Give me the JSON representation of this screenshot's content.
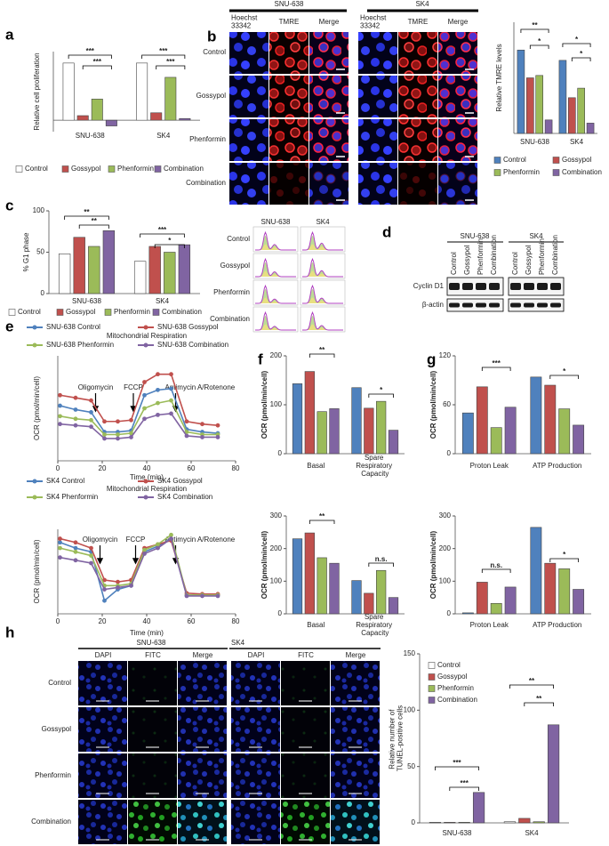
{
  "panel_labels": [
    "a",
    "b",
    "c",
    "d",
    "e",
    "f",
    "g",
    "h"
  ],
  "chart_data": [
    {
      "type": "bar",
      "y_label": "Relative cell proliferation",
      "categories": [
        "SNU-638",
        "SK4"
      ],
      "series": [
        {
          "name": "Control",
          "color": "#ffffff",
          "values": [
            1.0,
            1.0
          ]
        },
        {
          "name": "Gossypol",
          "color": "#c0504d",
          "values": [
            0.08,
            0.13
          ]
        },
        {
          "name": "Phenformin",
          "color": "#9bbb59",
          "values": [
            0.37,
            0.75
          ]
        },
        {
          "name": "Combination",
          "color": "#8064a2",
          "values": [
            -0.1,
            0.03
          ]
        }
      ],
      "ylim": [
        -0.2,
        1.2
      ],
      "annotations": [
        "***",
        "***",
        "***",
        "***"
      ]
    },
    {
      "type": "bar",
      "y_label": "Relative TMRE levels",
      "categories": [
        "SNU-638",
        "SK4"
      ],
      "series": [
        {
          "name": "Control",
          "color": "#4f81bd",
          "values": [
            1.05,
            0.92
          ]
        },
        {
          "name": "Gossypol",
          "color": "#c0504d",
          "values": [
            0.7,
            0.45
          ]
        },
        {
          "name": "Phenformin",
          "color": "#9bbb59",
          "values": [
            0.73,
            0.57
          ]
        },
        {
          "name": "Combination",
          "color": "#8064a2",
          "values": [
            0.17,
            0.13
          ]
        }
      ],
      "ylim": [
        0,
        1.4
      ],
      "annotations": [
        "**",
        "*",
        "*",
        "*"
      ]
    },
    {
      "type": "bar",
      "y_label": "% G1 phase",
      "categories": [
        "SNU-638",
        "SK4"
      ],
      "series": [
        {
          "name": "Control",
          "color": "#ffffff",
          "values": [
            48,
            39
          ]
        },
        {
          "name": "Gossypol",
          "color": "#c0504d",
          "values": [
            68,
            57
          ]
        },
        {
          "name": "Phenformin",
          "color": "#9bbb59",
          "values": [
            57,
            50
          ]
        },
        {
          "name": "Combination",
          "color": "#8064a2",
          "values": [
            76,
            59
          ]
        }
      ],
      "ylim": [
        0,
        100
      ],
      "yticks": [
        0,
        50,
        100
      ],
      "annotations": [
        "**",
        "**",
        "***",
        "*"
      ]
    },
    {
      "type": "line",
      "title": "Mitochondrial Respiration",
      "x_label": "Time (min)",
      "y_label": "OCR (pmol/min/cell)",
      "x": [
        1,
        8,
        15,
        21,
        27,
        33,
        39,
        45,
        51,
        58,
        65,
        72
      ],
      "xlim": [
        0,
        80
      ],
      "xticks": [
        0,
        20,
        40,
        60,
        80
      ],
      "ylim": [
        0,
        400
      ],
      "series": [
        {
          "name": "SNU-638 Control",
          "color": "#4f81bd",
          "values": [
            210,
            195,
            185,
            110,
            110,
            115,
            250,
            270,
            275,
            120,
            110,
            105
          ]
        },
        {
          "name": "SNU-638 Gossypol",
          "color": "#c0504d",
          "values": [
            250,
            240,
            230,
            150,
            150,
            155,
            300,
            330,
            330,
            150,
            140,
            135
          ]
        },
        {
          "name": "SNU-638 Phenformin",
          "color": "#9bbb59",
          "values": [
            170,
            160,
            155,
            100,
            100,
            105,
            200,
            220,
            230,
            110,
            100,
            100
          ]
        },
        {
          "name": "SNU-638 Combination",
          "color": "#8064a2",
          "values": [
            140,
            135,
            130,
            85,
            85,
            90,
            160,
            175,
            180,
            95,
            90,
            90
          ]
        }
      ],
      "annotations": [
        "Oligomycin",
        "FCCP",
        "Antimycin A/Rotenone"
      ]
    },
    {
      "type": "line",
      "title": "Mitochondrial Respiration",
      "x_label": "Time (min)",
      "y_label": "OCR (pmol/min/cell)",
      "x": [
        1,
        8,
        15,
        21,
        27,
        33,
        39,
        45,
        51,
        58,
        65,
        72
      ],
      "xlim": [
        0,
        80
      ],
      "xticks": [
        0,
        20,
        40,
        60,
        80
      ],
      "ylim": [
        0,
        450
      ],
      "series": [
        {
          "name": "SK4 Control",
          "color": "#4f81bd",
          "values": [
            380,
            350,
            330,
            70,
            130,
            150,
            330,
            360,
            400,
            100,
            100,
            100
          ]
        },
        {
          "name": "SK4 Gossypol",
          "color": "#c0504d",
          "values": [
            400,
            380,
            350,
            180,
            170,
            180,
            350,
            370,
            390,
            110,
            105,
            105
          ]
        },
        {
          "name": "SK4 Phenformin",
          "color": "#9bbb59",
          "values": [
            350,
            330,
            310,
            150,
            150,
            160,
            340,
            370,
            420,
            100,
            100,
            100
          ]
        },
        {
          "name": "SK4 Combination",
          "color": "#8064a2",
          "values": [
            300,
            285,
            270,
            130,
            140,
            150,
            320,
            350,
            400,
            95,
            95,
            95
          ]
        }
      ],
      "annotations": [
        "Oligomycin",
        "FCCP",
        "Antimycin A/Rotenone"
      ]
    },
    {
      "type": "bar",
      "y_label": "OCR (pmol/min/cell)",
      "categories": [
        "Basal",
        "Spare Respiratory Capacity"
      ],
      "series": [
        {
          "color": "#4f81bd",
          "values": [
            143,
            135
          ]
        },
        {
          "color": "#c0504d",
          "values": [
            168,
            93
          ]
        },
        {
          "color": "#9bbb59",
          "values": [
            86,
            107
          ]
        },
        {
          "color": "#8064a2",
          "values": [
            92,
            48
          ]
        }
      ],
      "ylim": [
        0,
        200
      ],
      "yticks": [
        0,
        100,
        200
      ],
      "annotations": [
        "**",
        "*"
      ]
    },
    {
      "type": "bar",
      "y_label": "OCR (pmol/min/cell)",
      "categories": [
        "Proton Leak",
        "ATP Production"
      ],
      "series": [
        {
          "color": "#4f81bd",
          "values": [
            50,
            94
          ]
        },
        {
          "color": "#c0504d",
          "values": [
            82,
            84
          ]
        },
        {
          "color": "#9bbb59",
          "values": [
            32,
            55
          ]
        },
        {
          "color": "#8064a2",
          "values": [
            57,
            35
          ]
        }
      ],
      "ylim": [
        0,
        120
      ],
      "yticks": [
        0,
        60,
        120
      ],
      "annotations": [
        "***",
        "*"
      ]
    },
    {
      "type": "bar",
      "y_label": "OCR (pmol/min/cell)",
      "categories": [
        "Basal",
        "Spare Respiratory Capacity"
      ],
      "series": [
        {
          "color": "#4f81bd",
          "values": [
            230,
            102
          ]
        },
        {
          "color": "#c0504d",
          "values": [
            248,
            63
          ]
        },
        {
          "color": "#9bbb59",
          "values": [
            172,
            133
          ]
        },
        {
          "color": "#8064a2",
          "values": [
            155,
            50
          ]
        }
      ],
      "ylim": [
        0,
        300
      ],
      "yticks": [
        0,
        100,
        200,
        300
      ],
      "annotations": [
        "**",
        "n.s."
      ]
    },
    {
      "type": "bar",
      "y_label": "OCR (pmol/min/cell)",
      "categories": [
        "Proton Leak",
        "ATP Production"
      ],
      "series": [
        {
          "color": "#4f81bd",
          "values": [
            3,
            265
          ]
        },
        {
          "color": "#c0504d",
          "values": [
            97,
            155
          ]
        },
        {
          "color": "#9bbb59",
          "values": [
            32,
            138
          ]
        },
        {
          "color": "#8064a2",
          "values": [
            82,
            75
          ]
        }
      ],
      "ylim": [
        0,
        300
      ],
      "yticks": [
        0,
        100,
        200,
        300
      ],
      "annotations": [
        "n.s.",
        "*"
      ]
    },
    {
      "type": "bar",
      "y_label": "Relative number of TUNEL-positive cells",
      "categories": [
        "SNU-638",
        "SK4"
      ],
      "series": [
        {
          "name": "Control",
          "color": "#ffffff",
          "values": [
            0.5,
            1
          ]
        },
        {
          "name": "Gossypol",
          "color": "#c0504d",
          "values": [
            0.5,
            4
          ]
        },
        {
          "name": "Phenformin",
          "color": "#9bbb59",
          "values": [
            0.5,
            1
          ]
        },
        {
          "name": "Combination",
          "color": "#8064a2",
          "values": [
            27,
            87
          ]
        }
      ],
      "ylim": [
        0,
        150
      ],
      "yticks": [
        0,
        50,
        100,
        150
      ],
      "annotations": [
        "***",
        "***",
        "**",
        "**"
      ]
    }
  ],
  "image_panels": {
    "tmre": {
      "groups": [
        "SNU-638",
        "SK4"
      ],
      "columns": [
        "Hoechst 33342",
        "TMRE",
        "Merge",
        "Hoechst 33342",
        "TMRE",
        "Merge"
      ],
      "rows": [
        "Control",
        "Gossypol",
        "Phenformin",
        "Combination"
      ]
    },
    "cell_cycle": {
      "groups": [
        "SNU-638",
        "SK4"
      ],
      "rows": [
        "Control",
        "Gossypol",
        "Phenformin",
        "Combination"
      ]
    },
    "western": {
      "groups": [
        "SNU-638",
        "SK4"
      ],
      "lanes": [
        "Control",
        "Gossypol",
        "Phenformin",
        "Combination",
        "Control",
        "Gossypol",
        "Phenformin",
        "Combination"
      ],
      "proteins": [
        "Cyclin D1",
        "β-actin"
      ]
    },
    "tunel": {
      "groups": [
        "SNU-638",
        "SK4"
      ],
      "columns": [
        "DAPI",
        "FITC",
        "Merge",
        "DAPI",
        "FITC",
        "Merge"
      ],
      "rows": [
        "Control",
        "Gossypol",
        "Phenformin",
        "Combination"
      ]
    }
  }
}
